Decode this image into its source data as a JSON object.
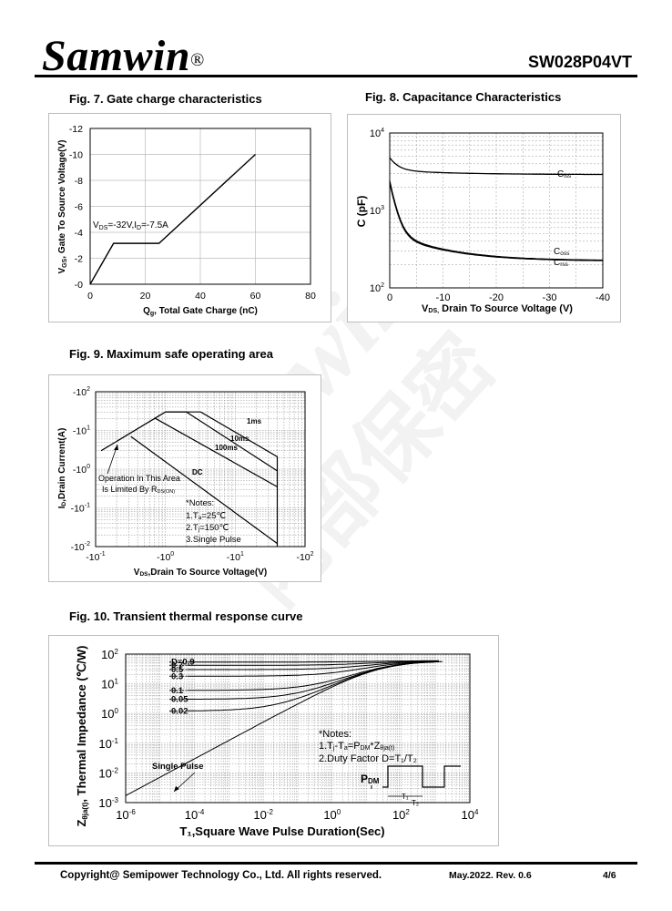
{
  "header": {
    "logo_text": "Samwin",
    "logo_mark": "®",
    "part_number": "SW028P04VT"
  },
  "watermark": {
    "text_top": "Samwin",
    "text_bottom": "内部保密"
  },
  "fig7": {
    "title": "Fig. 7. Gate charge characteristics",
    "xlabel_main": "Q",
    "xlabel_sub": "g",
    "xlabel_rest": ", Total Gate Charge (nC)",
    "ylabel_main": "V",
    "ylabel_sub": "GS",
    "ylabel_rest": ",  Gate To  Source Voltage(V)",
    "annotation_v": "V",
    "annotation_ds": "DS",
    "annotation_mid": "=-32V,I",
    "annotation_d": "D",
    "annotation_end": "=-7.5A",
    "xticks": [
      "0",
      "20",
      "40",
      "60",
      "80"
    ],
    "yticks": [
      "-0",
      "-2",
      "-4",
      "-6",
      "-8",
      "-10",
      "-12"
    ]
  },
  "fig8": {
    "title": "Fig. 8. Capacitance Characteristics",
    "xlabel_main": "V",
    "xlabel_sub": "DS,",
    "xlabel_rest": " Drain To Source Voltage (V)",
    "ylabel": "C (pF)",
    "xticks": [
      "0",
      "-10",
      "-20",
      "-30",
      "-40"
    ],
    "ytick_base": "10",
    "ytick_exps": [
      "4",
      "3",
      "2"
    ],
    "curve_labels": [
      {
        "main": "C",
        "sub": "iss"
      },
      {
        "main": "C",
        "sub": "oss"
      },
      {
        "main": "C",
        "sub": "rss"
      }
    ]
  },
  "fig9": {
    "title": "Fig. 9. Maximum safe operating area",
    "xlabel_main": "V",
    "xlabel_sub": "DS",
    "xlabel_rest": ",Drain To Source Voltage(V)",
    "ylabel_main": "I",
    "ylabel_sub": "D",
    "ylabel_rest": ",Drain Current(A)",
    "xticks": [
      {
        "base": "-10",
        "exp": "-1"
      },
      {
        "base": "-10",
        "exp": "0"
      },
      {
        "base": "-10",
        "exp": "1"
      },
      {
        "base": "-10",
        "exp": "2"
      }
    ],
    "yticks": [
      {
        "base": "-10",
        "exp": "2"
      },
      {
        "base": "-10",
        "exp": "1"
      },
      {
        "base": "-10",
        "exp": "0"
      },
      {
        "base": "-10",
        "exp": "-1"
      },
      {
        "base": "-10",
        "exp": "-2"
      }
    ],
    "curve_labels": [
      "1ms",
      "10ms",
      "100ms",
      "DC"
    ],
    "limit_line1": "Operation In This Area",
    "limit_line2": "Is Limited By R",
    "limit_sub": "DS(ON)",
    "notes_title": "*Notes:",
    "note1": "1.T",
    "note1_sub": "a",
    "note1_end": "=25℃",
    "note2": "2.T",
    "note2_sub": "j",
    "note2_end": "=150℃",
    "note3": "3.Single Pulse"
  },
  "fig10": {
    "title": "Fig. 10. Transient thermal response curve",
    "xlabel": "T₁,Square Wave Pulse Duration(Sec)",
    "ylabel_main": "Z",
    "ylabel_sub": "θja(t)",
    "ylabel_rest": ", Thermal  Impedance (℃/W)",
    "xtick_base": "10",
    "xtick_exps": [
      "-6",
      "-4",
      "-2",
      "0",
      "2",
      "4"
    ],
    "ytick_base": "10",
    "ytick_exps": [
      "2",
      "1",
      "0",
      "-1",
      "-2",
      "-3"
    ],
    "duty_labels": [
      "D=0.9",
      "0.7",
      "0.5",
      "0.3",
      "0.1",
      "0.05",
      "0.02"
    ],
    "single_pulse": "Single Pulse",
    "notes_title": "*Notes:",
    "note1_a": "1.T",
    "note1_b": "j",
    "note1_c": "-T",
    "note1_d": "a",
    "note1_e": "=P",
    "note1_f": "DM",
    "note1_g": "*Z",
    "note1_h": "θja(t)",
    "note2": "2.Duty Factor D=T₁/T₂",
    "pdm_main": "P",
    "pdm_sub": "DM",
    "t1": "T₁",
    "t2": "T₂"
  },
  "footer": {
    "copyright": "Copyright@ Semipower Technology Co., Ltd. All rights reserved.",
    "revision": "May.2022. Rev. 0.6",
    "page": "4/6"
  }
}
